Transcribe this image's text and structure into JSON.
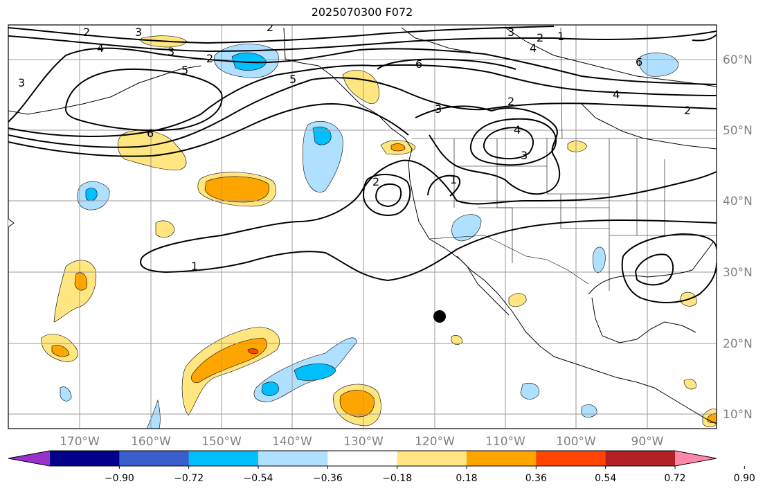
{
  "title": "2025070300 F072",
  "map": {
    "lon_labels": [
      "170°W",
      "160°W",
      "150°W",
      "140°W",
      "130°W",
      "120°W",
      "110°W",
      "100°W",
      "90°W"
    ],
    "lat_labels": [
      "60°N",
      "50°N",
      "40°N",
      "30°N",
      "20°N",
      "10°N"
    ],
    "contour_labels": [
      "1",
      "2",
      "3",
      "4",
      "5",
      "6"
    ],
    "label_color": "#808080"
  },
  "colorbar": {
    "ticks": [
      "−0.90",
      "−0.72",
      "−0.54",
      "−0.36",
      "−0.18",
      "0.18",
      "0.36",
      "0.54",
      "0.72",
      "0.90"
    ],
    "colors": [
      "#9932cc",
      "#00008b",
      "#3a5fcd",
      "#00bfff",
      "#b0e0ff",
      "#ffffff",
      "#ffe680",
      "#ffa500",
      "#ff4500",
      "#b22222",
      "#ff88aa"
    ]
  }
}
